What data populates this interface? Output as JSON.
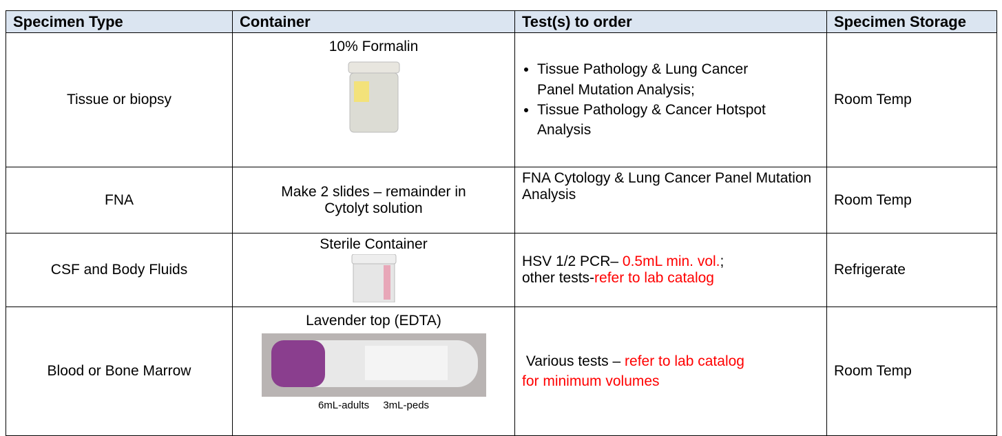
{
  "table": {
    "header": [
      "Specimen Type",
      "Container",
      "Test(s) to order",
      "Specimen Storage"
    ],
    "rows": [
      {
        "type": "Tissue or biopsy",
        "container": "10% Formalin",
        "bullets": [
          "Tissue Pathology & Lung Cancer Panel Mutation Analysis;",
          "Tissue Pathology & Cancer Hotspot Analysis"
        ],
        "storage": "Room Temp"
      },
      {
        "type": "FNA",
        "container": "Make 2 slides – remainder in Cytolyt solution",
        "tests": [
          [
            {
              "text": "FNA Cytology & Lung Cancer Panel Mutation Analysis"
            }
          ]
        ],
        "storage": "Room Temp"
      },
      {
        "type": "CSF and Body Fluids",
        "container": "Sterile Container",
        "tests": [
          [
            {
              "text": "HSV 1/2 PCR– "
            },
            {
              "text": "0.5mL min. vol.",
              "color": "#ff0000"
            },
            {
              "text": ";"
            }
          ],
          [
            {
              "text": "other tests-"
            },
            {
              "text": "refer to lab catalog",
              "color": "#ff0000"
            }
          ]
        ],
        "storage": "Refrigerate"
      },
      {
        "type": "Blood or Bone Marrow",
        "container": "Lavender top (EDTA)",
        "captions": [
          "6mL-adults",
          "3mL-peds"
        ],
        "tests": [
          [
            {
              "text": " Various tests – "
            },
            {
              "text": "refer to lab catalog for minimum volumes",
              "color": "#ff0000"
            }
          ]
        ],
        "storage": "Room Temp"
      }
    ]
  }
}
